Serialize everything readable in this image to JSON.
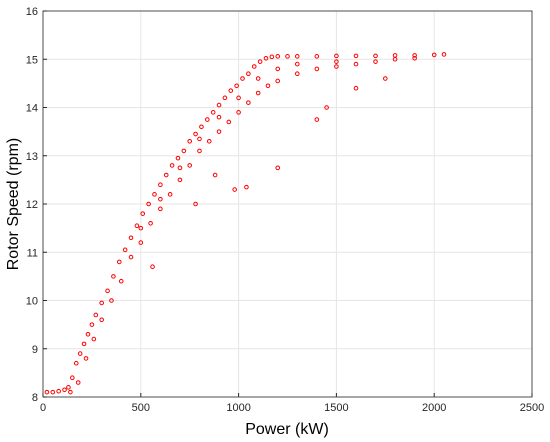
{
  "chart_data": {
    "type": "scatter",
    "x_label": "Power (kW)",
    "y_label": "Rotor Speed (rpm)",
    "xlim": [
      0,
      2500
    ],
    "xticks": [
      0,
      500,
      1000,
      1500,
      2000,
      2500
    ],
    "ylim": [
      8,
      16
    ],
    "yticks": [
      8,
      9,
      10,
      11,
      12,
      13,
      14,
      15,
      16
    ],
    "grid": true,
    "color": "#ff0000",
    "x": [
      20,
      50,
      80,
      110,
      130,
      150,
      170,
      190,
      210,
      230,
      250,
      270,
      300,
      330,
      360,
      390,
      420,
      450,
      480,
      510,
      540,
      570,
      600,
      630,
      660,
      690,
      720,
      750,
      780,
      810,
      840,
      870,
      900,
      930,
      960,
      990,
      1020,
      1050,
      1080,
      1110,
      1140,
      1170,
      1200,
      1250,
      1300,
      1400,
      1500,
      1600,
      1700,
      1800,
      1900,
      2000,
      2050,
      140,
      180,
      220,
      260,
      300,
      350,
      400,
      450,
      500,
      550,
      600,
      650,
      700,
      750,
      800,
      850,
      900,
      950,
      1000,
      1050,
      1100,
      1150,
      1200,
      1300,
      1400,
      1500,
      1600,
      1700,
      1800,
      1900,
      500,
      700,
      900,
      1100,
      1300,
      1500,
      800,
      1000,
      1200,
      600,
      560,
      980,
      1040,
      1200,
      1400,
      1450,
      780,
      1600,
      1750,
      880
    ],
    "y": [
      8.1,
      8.1,
      8.12,
      8.15,
      8.2,
      8.4,
      8.7,
      8.9,
      9.1,
      9.3,
      9.5,
      9.7,
      9.95,
      10.2,
      10.5,
      10.8,
      11.05,
      11.3,
      11.55,
      11.8,
      12.0,
      12.2,
      12.4,
      12.6,
      12.8,
      12.95,
      13.1,
      13.3,
      13.45,
      13.6,
      13.75,
      13.9,
      14.05,
      14.2,
      14.35,
      14.45,
      14.6,
      14.7,
      14.85,
      14.95,
      15.02,
      15.05,
      15.06,
      15.06,
      15.06,
      15.06,
      15.07,
      15.07,
      15.07,
      15.08,
      15.08,
      15.09,
      15.1,
      8.1,
      8.3,
      8.8,
      9.2,
      9.6,
      10.0,
      10.4,
      10.9,
      11.2,
      11.6,
      11.9,
      12.2,
      12.5,
      12.8,
      13.1,
      13.3,
      13.5,
      13.7,
      13.9,
      14.1,
      14.3,
      14.45,
      14.55,
      14.7,
      14.8,
      14.85,
      14.9,
      14.95,
      15.0,
      15.02,
      11.5,
      12.75,
      13.8,
      14.6,
      14.9,
      14.95,
      13.35,
      14.2,
      14.8,
      12.1,
      10.7,
      12.3,
      12.35,
      12.75,
      13.75,
      14.0,
      12.0,
      14.4,
      14.6,
      12.6
    ]
  }
}
